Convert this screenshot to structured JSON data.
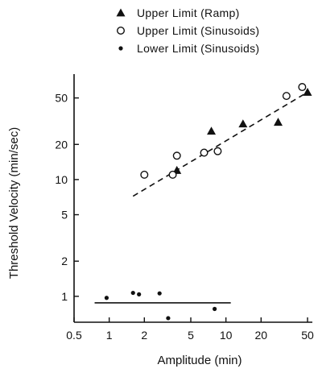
{
  "chart_data": {
    "type": "scatter",
    "xlabel": "Amplitude (min)",
    "ylabel": "Threshold Velocity (min/sec)",
    "x_scale": "log",
    "y_scale": "log",
    "xlim": [
      0.5,
      55
    ],
    "ylim": [
      0.6,
      80
    ],
    "x_ticks": [
      0.5,
      1,
      2,
      5,
      10,
      20,
      50
    ],
    "x_tick_labels": [
      "0.5",
      "1",
      "2",
      "5",
      "10",
      "20",
      "50"
    ],
    "y_ticks": [
      1,
      2,
      5,
      10,
      20,
      50
    ],
    "y_tick_labels": [
      "1",
      "2",
      "5",
      "10",
      "20",
      "50"
    ],
    "legend_position": "top",
    "series": [
      {
        "name": "Upper Limit (Ramp)",
        "marker": "filled-triangle",
        "points": [
          [
            3.8,
            12
          ],
          [
            7.5,
            26
          ],
          [
            14,
            30
          ],
          [
            28,
            31
          ],
          [
            50,
            56
          ]
        ]
      },
      {
        "name": "Upper Limit (Sinusoids)",
        "marker": "open-circle",
        "points": [
          [
            2,
            11
          ],
          [
            3.5,
            11
          ],
          [
            3.8,
            16
          ],
          [
            6.5,
            17
          ],
          [
            8.5,
            17.5
          ],
          [
            33,
            52
          ],
          [
            45,
            62
          ]
        ]
      },
      {
        "name": "Lower Limit (Sinusoids)",
        "marker": "filled-circle",
        "points": [
          [
            0.95,
            0.97
          ],
          [
            1.6,
            1.07
          ],
          [
            1.8,
            1.04
          ],
          [
            2.7,
            1.06
          ],
          [
            3.2,
            0.65
          ],
          [
            8,
            0.78
          ]
        ]
      }
    ],
    "fit_lines": [
      {
        "style": "dashed",
        "points": [
          [
            1.6,
            7.2
          ],
          [
            50,
            56
          ]
        ]
      },
      {
        "style": "solid",
        "points": [
          [
            0.75,
            0.88
          ],
          [
            11,
            0.88
          ]
        ]
      }
    ],
    "colors": {
      "ink": "#111111",
      "background": "#ffffff"
    }
  }
}
